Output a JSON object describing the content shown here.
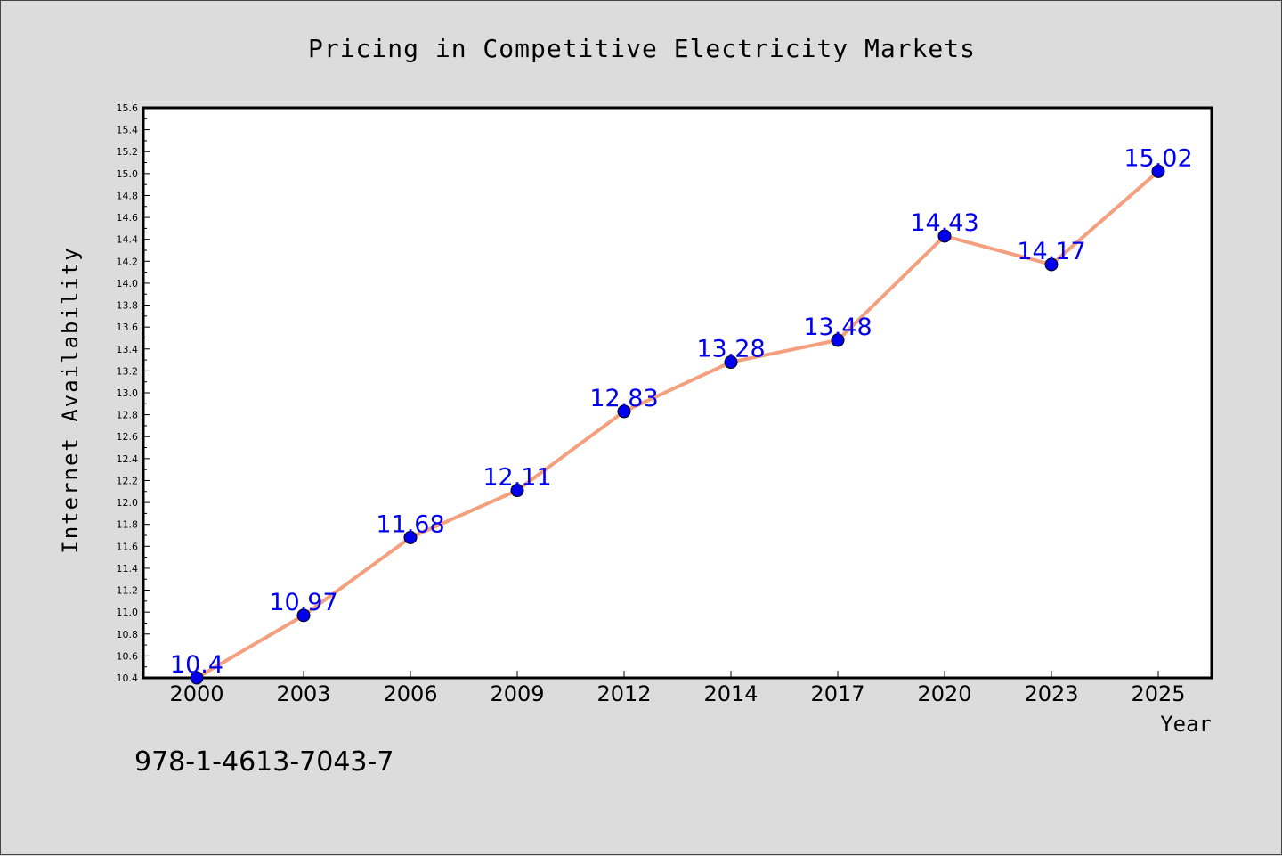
{
  "chart_data": {
    "type": "line",
    "title": "Pricing in Competitive Electricity Markets",
    "xlabel": "Year",
    "ylabel": "Internet Availability",
    "categories": [
      "2000",
      "2003",
      "2006",
      "2009",
      "2012",
      "2014",
      "2017",
      "2020",
      "2023",
      "2025"
    ],
    "series": [
      {
        "values": [
          10.4,
          10.97,
          11.68,
          12.11,
          12.83,
          13.28,
          13.48,
          14.43,
          14.17,
          15.02
        ],
        "data_labels": [
          "10.4",
          "10.97",
          "11.68",
          "12.11",
          "12.83",
          "13.28",
          "13.48",
          "14.43",
          "14.17",
          "15.02"
        ]
      }
    ],
    "ylim": [
      10.4,
      15.6
    ],
    "yticks": [
      "10.4",
      "10.6",
      "10.8",
      "11.0",
      "11.2",
      "11.4",
      "11.6",
      "11.8",
      "12.0",
      "12.2",
      "12.4",
      "12.6",
      "12.8",
      "13.0",
      "13.2",
      "13.4",
      "13.6",
      "13.8",
      "14.0",
      "14.2",
      "14.4",
      "14.6",
      "14.8",
      "15.0",
      "15.2",
      "15.4",
      "15.6"
    ],
    "grid": false,
    "legend": "none",
    "colors": {
      "line": "#f4a07f",
      "marker": "#0000ee",
      "label": "#0000ee",
      "background": "#dcdcdc",
      "plot_background": "#ffffff"
    }
  },
  "footer": {
    "isbn": "978-1-4613-7043-7"
  }
}
